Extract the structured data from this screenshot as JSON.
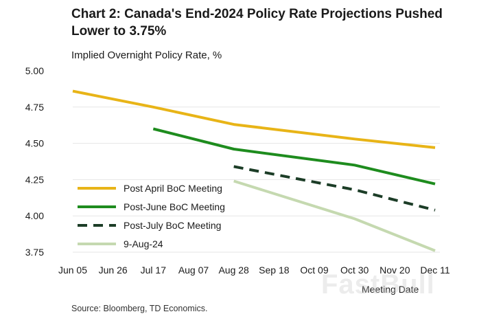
{
  "chart_data": {
    "type": "line",
    "title": "Chart 2: Canada's End-2024 Policy Rate Projections Pushed Lower to 3.75%",
    "ylabel": "Implied Overnight Policy Rate, %",
    "xlabel": "Meeting Date",
    "ylim": [
      3.75,
      5.0
    ],
    "yticks": [
      "5.00",
      "4.75",
      "4.50",
      "4.25",
      "4.00",
      "3.75"
    ],
    "ytick_values": [
      5.0,
      4.75,
      4.5,
      4.25,
      4.0,
      3.75
    ],
    "categories": [
      "Jun 05",
      "Jun 26",
      "Jul 17",
      "Aug 07",
      "Aug 28",
      "Sep 18",
      "Oct 09",
      "Oct 30",
      "Nov 20",
      "Dec 11"
    ],
    "series": [
      {
        "name": "Post April BoC Meeting",
        "color": "#e8b417",
        "dash": false,
        "x": [
          "Jun 05",
          "Jul 17",
          "Aug 28",
          "Oct 30",
          "Dec 11"
        ],
        "values": [
          4.86,
          4.75,
          4.63,
          4.53,
          4.47
        ]
      },
      {
        "name": "Post-June BoC Meeting",
        "color": "#1e8c1e",
        "dash": false,
        "x": [
          "Jul 17",
          "Aug 28",
          "Oct 30",
          "Dec 11"
        ],
        "values": [
          4.6,
          4.46,
          4.35,
          4.22
        ]
      },
      {
        "name": "Post-July BoC Meeting",
        "color": "#1c3d27",
        "dash": true,
        "x": [
          "Aug 28",
          "Oct 30",
          "Dec 11"
        ],
        "values": [
          4.34,
          4.18,
          4.04
        ]
      },
      {
        "name": "9-Aug-24",
        "color": "#c5d9b0",
        "dash": false,
        "x": [
          "Aug 28",
          "Oct 30",
          "Dec 11"
        ],
        "values": [
          4.24,
          3.98,
          3.76
        ]
      }
    ],
    "grid": true,
    "legend": "bottom-left"
  },
  "title_text": "Chart 2: Canada's End-2024 Policy Rate Projections Pushed Lower to 3.75%",
  "subtitle_text": "Implied Overnight Policy Rate, %",
  "xlabel_text": "Meeting Date",
  "source_text": "Source: Bloomberg, TD Economics.",
  "watermark_text": "FastBull"
}
